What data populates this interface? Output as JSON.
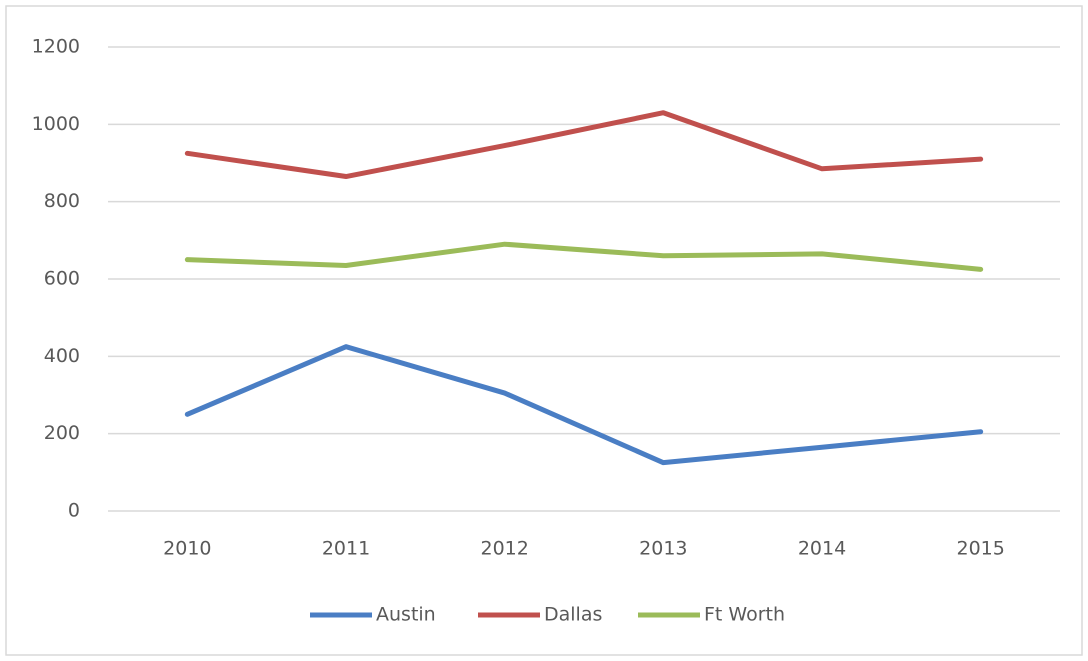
{
  "chart_data": {
    "type": "line",
    "categories": [
      "2010",
      "2011",
      "2012",
      "2013",
      "2014",
      "2015"
    ],
    "series": [
      {
        "name": "Austin",
        "color": "#4a7ec4",
        "values": [
          250,
          425,
          305,
          125,
          165,
          205
        ]
      },
      {
        "name": "Dallas",
        "color": "#c0504d",
        "values": [
          925,
          865,
          945,
          1030,
          885,
          910
        ]
      },
      {
        "name": "Ft Worth",
        "color": "#9bbb59",
        "values": [
          650,
          635,
          690,
          660,
          665,
          625
        ]
      }
    ],
    "ylim": [
      0,
      1200
    ],
    "yticks": [
      0,
      200,
      400,
      600,
      800,
      1000,
      1200
    ],
    "grid": true,
    "legend": "bottom"
  }
}
